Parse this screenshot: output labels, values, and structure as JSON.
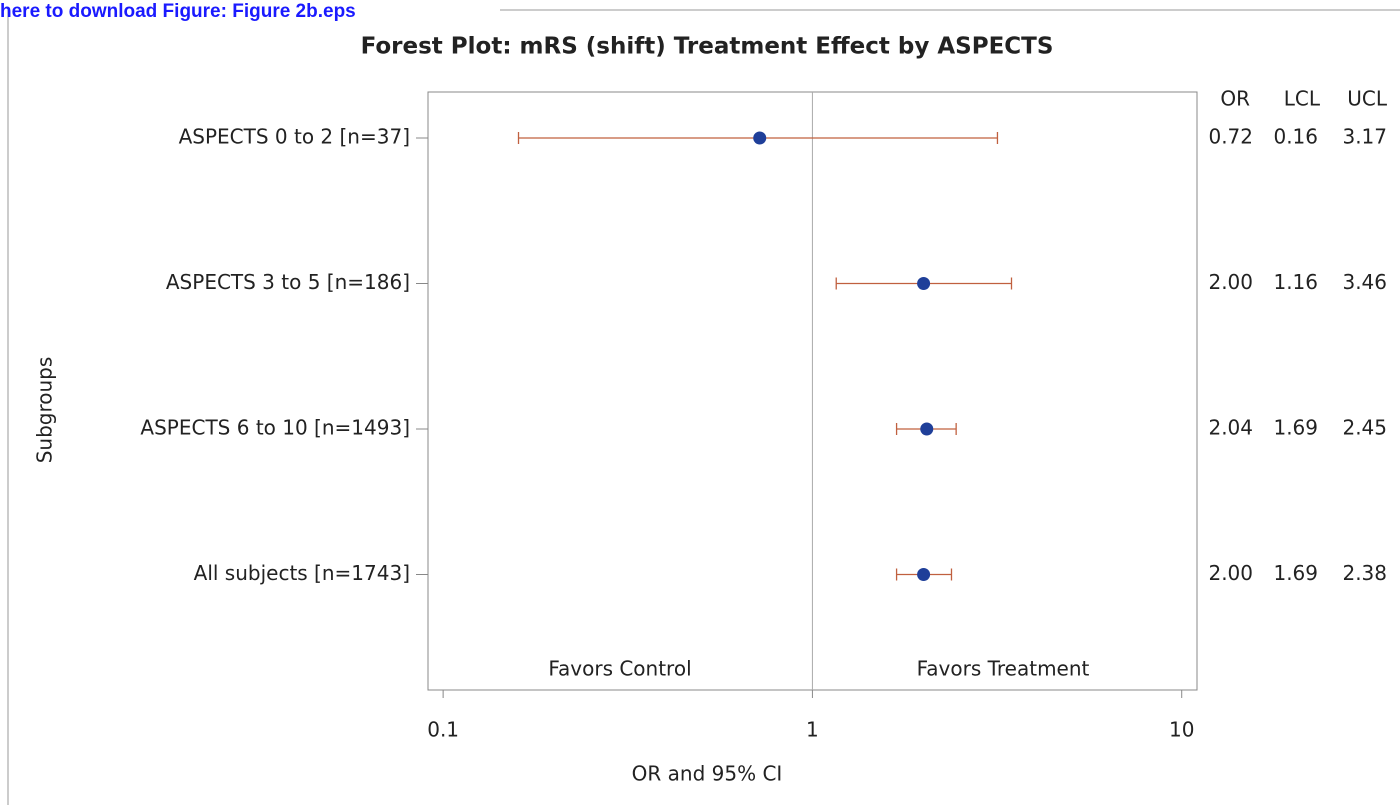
{
  "download_link": "here to download Figure: Figure 2b.eps",
  "chart_data": {
    "type": "forest",
    "title": "Forest Plot: mRS (shift) Treatment Effect by ASPECTS",
    "x_label": "OR and 95% CI",
    "y_label": "Subgroups",
    "categories": [
      "ASPECTS 0 to 2 [n=37]",
      "ASPECTS 3 to 5 [n=186]",
      "ASPECTS 6 to 10 [n=1493]",
      "All subjects [n=1743]"
    ],
    "values": [
      0.72,
      2.0,
      2.04,
      2.0
    ],
    "value_labels": [
      "0.72",
      "2.00",
      "2.04",
      "2.00"
    ],
    "lower": [
      0.16,
      1.16,
      1.69,
      1.69
    ],
    "upper": [
      3.17,
      3.46,
      2.45,
      2.38
    ],
    "column_headers": [
      "OR",
      "LCL",
      "UCL"
    ],
    "annotations": [
      "Favors Control",
      "Favors Treatment"
    ],
    "reference_line": 1,
    "xlim": [
      0.091,
      11
    ],
    "xticks": [
      0.1,
      1,
      10
    ],
    "x_log_scale": true,
    "marker_color": "#1f3f99",
    "ci_color": "#c0603f"
  }
}
